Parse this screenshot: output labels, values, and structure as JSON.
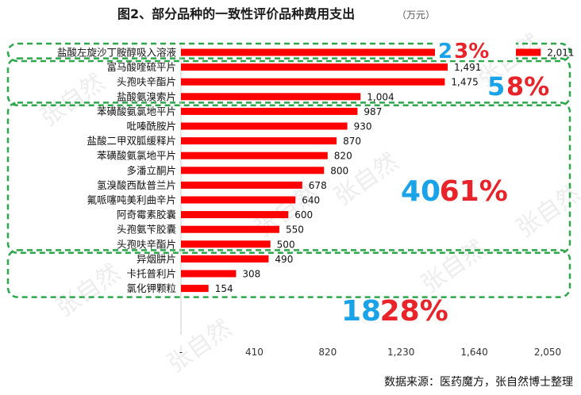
{
  "chart_data": {
    "type": "bar",
    "orientation": "horizontal",
    "title": "图2、部分品种的一致性评价品种费用支出",
    "title_unit": "（万元）",
    "categories": [
      "盐酸左旋沙丁胺醇吸入溶液",
      "富马酸喹硫平片",
      "头孢呋辛酯片",
      "盐酸氨溴索片",
      "苯磺酸氨氯地平片",
      "吡嗪酰胺片",
      "盐酸二甲双胍缓释片",
      "苯磺酸氨氯地平片",
      "多潘立酮片",
      "氢溴酸西酞普兰片",
      "氟哌噻吨美利曲辛片",
      "阿奇霉素胶囊",
      "头孢氨苄胶囊",
      "头孢呋辛酯片",
      "异烟肼片",
      "卡托普利片",
      "氯化钾颗粒"
    ],
    "values": [
      2011,
      1491,
      1475,
      1004,
      987,
      930,
      870,
      820,
      800,
      678,
      640,
      600,
      550,
      500,
      490,
      308,
      154
    ],
    "value_labels": [
      "2,011",
      "1,491",
      "1,475",
      "1,004",
      "987",
      "930",
      "870",
      "820",
      "800",
      "678",
      "640",
      "600",
      "550",
      "500",
      "490",
      "308",
      "154"
    ],
    "x_ticks": [
      0,
      410,
      820,
      1230,
      1640,
      2050
    ],
    "x_tick_labels": [
      "-",
      "410",
      "820",
      "1,230",
      "1,640",
      "2,050"
    ],
    "xlim": [
      0,
      2050
    ],
    "bar_color": "#ff0000",
    "grid": false,
    "groups": [
      {
        "first": 0,
        "last": 0,
        "count": "2",
        "percent": "3%"
      },
      {
        "first": 1,
        "last": 3,
        "count": "5",
        "percent": "8%"
      },
      {
        "first": 4,
        "last": 13,
        "count": "40",
        "percent": "61%"
      },
      {
        "first": 14,
        "last": 16,
        "count": "18",
        "percent": "28%"
      }
    ],
    "group_border_color": "#2ca84b",
    "count_color": "#1aa3e8",
    "percent_color": "#e8242a",
    "source": "数据来源：医药魔方，张自然博士整理",
    "watermark": "张自然"
  }
}
